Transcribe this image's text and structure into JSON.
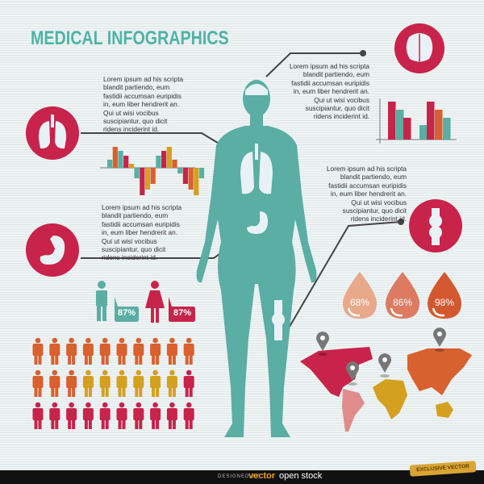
{
  "title": "MEDICAL INFOGRAPHICS",
  "colors": {
    "red": "#c8234a",
    "teal": "#5aaea4",
    "orange": "#d9602f",
    "yellow": "#d4a020",
    "light": "#e8f2f6",
    "line": "#444444"
  },
  "icons": [
    "brain-icon",
    "lungs-icon",
    "stomach-icon",
    "knee-joint-icon",
    "male-icon",
    "female-icon",
    "map-pin-icon"
  ],
  "text_blocks": [
    {
      "lines": [
        "Lorem ipsum ad his scripta",
        "blandit partiendo, eum",
        "fastidii accumsan euripidis",
        "in, eum liber hendrerit an.",
        "Qui ut wisi vocibus",
        "suscipiantur, quo dicit",
        "ridens inciderint id."
      ]
    },
    {
      "lines": [
        "Lorem ipsum ad his scripta",
        "blandit partiendo, eum",
        "fastidii accumsan euripidis",
        "in, eum liber hendrerit an.",
        "Qui ut wisi vocibus",
        "suscipiantur, quo dicit",
        "ridens inciderint id."
      ]
    },
    {
      "lines": [
        "Lorem ipsum ad his scripta",
        "blandit partiendo, eum",
        "fastidii accumsan euripidis",
        "in, eum liber hendrerit an.",
        "Qui ut wisi vocibus",
        "suscipiantur, quo dicit",
        "ridens inciderint id."
      ]
    },
    {
      "lines": [
        "Lorem ipsum ad his scripta",
        "blandit partiendo, eum",
        "fastidii accumsan euripidis",
        "in, eum liber hendrerit an.",
        "Qui ut wisi vocibus",
        "suscipiantur, quo dicit",
        "ridens inciderint id."
      ]
    }
  ],
  "gender_stats": {
    "male": "87%",
    "female": "87%"
  },
  "drops": [
    "68%",
    "86%",
    "98%"
  ],
  "wave_chart": {
    "type": "bar",
    "values": [
      10,
      26,
      21,
      15,
      5,
      -13,
      -34,
      -27,
      -20,
      15,
      21,
      26,
      10,
      -7,
      -20,
      -27,
      -34,
      -13
    ],
    "colors": [
      "teal",
      "orange",
      "teal",
      "red",
      "yellow",
      "teal",
      "red",
      "yellow",
      "orange",
      "teal",
      "red",
      "yellow",
      "orange",
      "teal",
      "red",
      "orange",
      "yellow",
      "teal"
    ]
  },
  "group_chart": {
    "type": "bar",
    "groups": [
      [
        47,
        37,
        27
      ],
      [
        18,
        47,
        37,
        27
      ]
    ],
    "colors": [
      [
        "red",
        "teal",
        "red"
      ],
      [
        "teal",
        "red",
        "orange",
        "teal"
      ]
    ]
  },
  "people_grid": [
    [
      "orange",
      "orange",
      "orange",
      "orange",
      "orange",
      "orange",
      "orange",
      "orange",
      "orange",
      "orange"
    ],
    [
      "orange",
      "orange",
      "orange",
      "yellow",
      "yellow",
      "yellow",
      "yellow",
      "yellow",
      "yellow",
      "red"
    ],
    [
      "red",
      "red",
      "red",
      "red",
      "red",
      "red",
      "red",
      "red",
      "red",
      "red"
    ]
  ],
  "footer": {
    "designed_by": "DESIGNED BY",
    "brand_a": "vector",
    "brand_b": "open stock",
    "badge": "EXCLUSIVE VECTOR"
  }
}
